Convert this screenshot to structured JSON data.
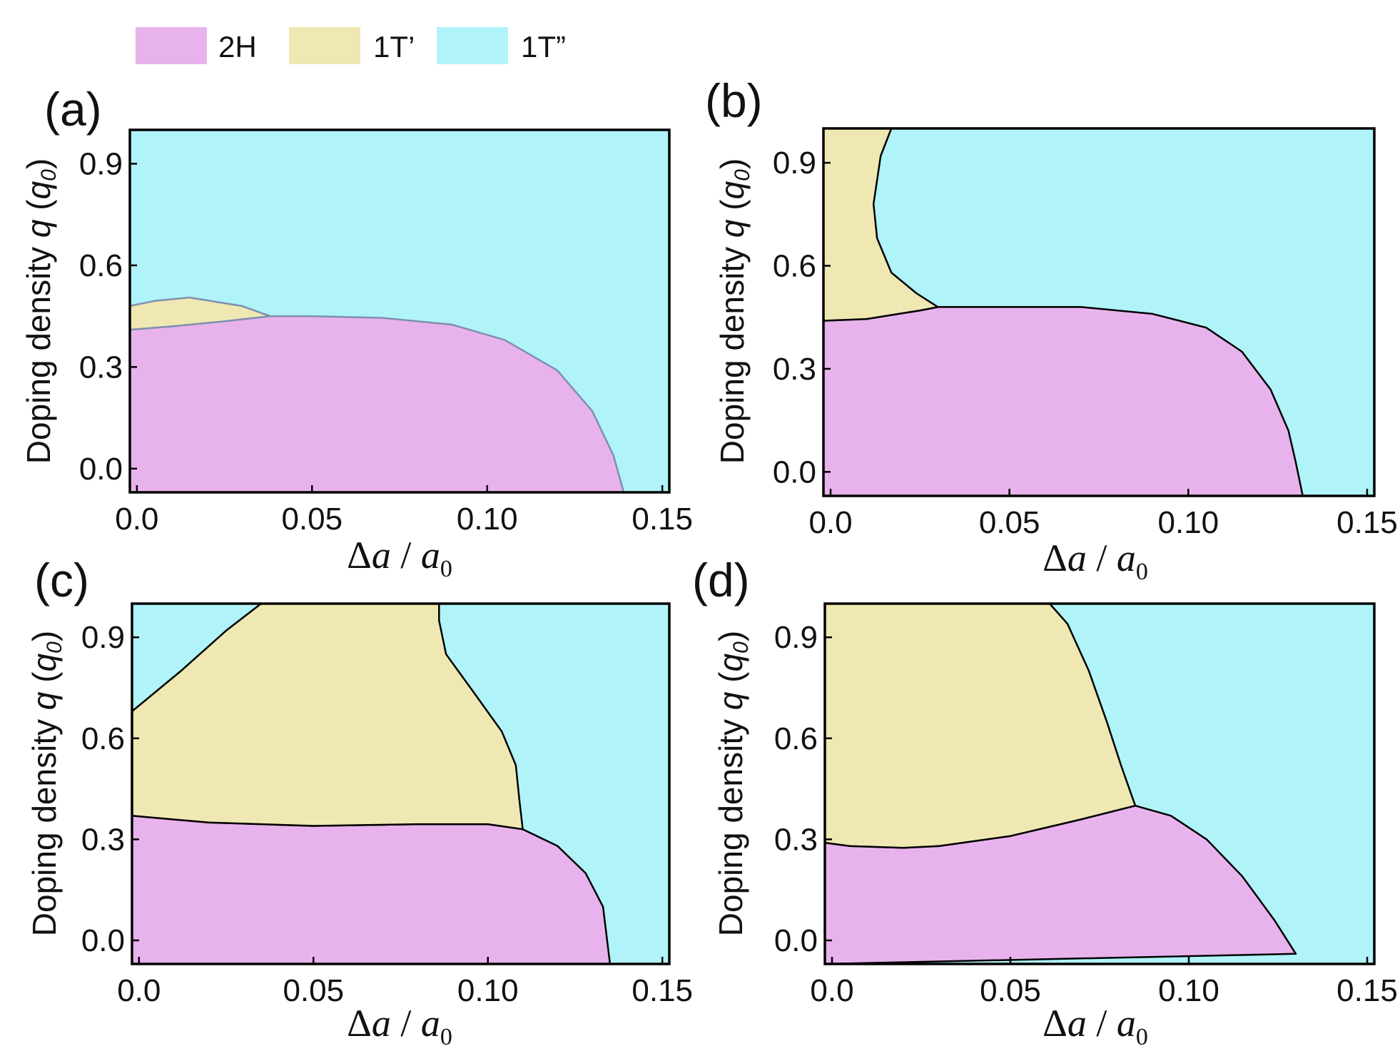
{
  "legend": [
    {
      "key": "2H",
      "label": "2H",
      "color": "#e8b3ec"
    },
    {
      "key": "1T1",
      "label": "1T’",
      "color": "#f0e8b3"
    },
    {
      "key": "1T2",
      "label": "1T”",
      "color": "#b0f3f8"
    }
  ],
  "axes": {
    "xlabel_delta": "Δ",
    "xlabel_a": "a",
    "xlabel_slash": " / ",
    "xlabel_a0": "a",
    "xlabel_sub": "0",
    "ylabel_prefix": "Doping density ",
    "ylabel_q": "q",
    "ylabel_open": " (",
    "ylabel_q0": "q",
    "ylabel_sub": "0",
    "ylabel_close": ")",
    "xlim": [
      -0.002,
      0.152
    ],
    "ylim": [
      -0.07,
      1.0
    ],
    "xticks": [
      "0.0",
      "0.05",
      "0.10",
      "0.15"
    ],
    "xtick_values": [
      0.0,
      0.05,
      0.1,
      0.15
    ],
    "yticks": [
      "0.0",
      "0.3",
      "0.6",
      "0.9"
    ],
    "ytick_values": [
      0.0,
      0.3,
      0.6,
      0.9
    ]
  },
  "chart_data": [
    {
      "type": "area",
      "panel": "(a)",
      "regions": [
        {
          "phase": "1T2",
          "polygon": [
            [
              -0.002,
              -0.07
            ],
            [
              0.152,
              -0.07
            ],
            [
              0.152,
              1.0
            ],
            [
              -0.002,
              1.0
            ]
          ]
        },
        {
          "phase": "2H",
          "polygon": [
            [
              -0.002,
              -0.07
            ],
            [
              -0.002,
              0.41
            ],
            [
              0.01,
              0.42
            ],
            [
              0.025,
              0.435
            ],
            [
              0.038,
              0.45
            ],
            [
              0.05,
              0.45
            ],
            [
              0.07,
              0.445
            ],
            [
              0.09,
              0.425
            ],
            [
              0.105,
              0.38
            ],
            [
              0.12,
              0.29
            ],
            [
              0.13,
              0.17
            ],
            [
              0.136,
              0.04
            ],
            [
              0.139,
              -0.07
            ]
          ]
        },
        {
          "phase": "1T1",
          "polygon": [
            [
              -0.002,
              0.41
            ],
            [
              0.01,
              0.42
            ],
            [
              0.025,
              0.435
            ],
            [
              0.038,
              0.45
            ],
            [
              0.03,
              0.48
            ],
            [
              0.015,
              0.505
            ],
            [
              0.005,
              0.495
            ],
            [
              -0.002,
              0.48
            ]
          ]
        }
      ],
      "boundary_color": "#7f8fb0"
    },
    {
      "type": "area",
      "panel": "(b)",
      "regions": [
        {
          "phase": "1T2",
          "polygon": [
            [
              -0.002,
              -0.07
            ],
            [
              0.152,
              -0.07
            ],
            [
              0.152,
              1.0
            ],
            [
              -0.002,
              1.0
            ]
          ]
        },
        {
          "phase": "2H",
          "polygon": [
            [
              -0.002,
              -0.07
            ],
            [
              -0.002,
              0.44
            ],
            [
              0.01,
              0.445
            ],
            [
              0.025,
              0.47
            ],
            [
              0.03,
              0.48
            ],
            [
              0.05,
              0.48
            ],
            [
              0.07,
              0.48
            ],
            [
              0.09,
              0.46
            ],
            [
              0.105,
              0.42
            ],
            [
              0.115,
              0.35
            ],
            [
              0.123,
              0.24
            ],
            [
              0.128,
              0.12
            ],
            [
              0.13,
              0.03
            ],
            [
              0.132,
              -0.07
            ]
          ]
        },
        {
          "phase": "1T1",
          "polygon": [
            [
              -0.002,
              1.0
            ],
            [
              0.017,
              1.0
            ],
            [
              0.014,
              0.92
            ],
            [
              0.012,
              0.78
            ],
            [
              0.013,
              0.68
            ],
            [
              0.017,
              0.58
            ],
            [
              0.024,
              0.52
            ],
            [
              0.03,
              0.48
            ],
            [
              0.025,
              0.47
            ],
            [
              0.01,
              0.445
            ],
            [
              -0.002,
              0.44
            ]
          ]
        }
      ],
      "boundary_color": "#000000"
    },
    {
      "type": "area",
      "panel": "(c)",
      "regions": [
        {
          "phase": "1T2",
          "polygon": [
            [
              -0.002,
              -0.07
            ],
            [
              0.152,
              -0.07
            ],
            [
              0.152,
              1.0
            ],
            [
              -0.002,
              1.0
            ]
          ]
        },
        {
          "phase": "2H",
          "polygon": [
            [
              -0.002,
              -0.07
            ],
            [
              -0.002,
              0.37
            ],
            [
              0.02,
              0.35
            ],
            [
              0.05,
              0.34
            ],
            [
              0.08,
              0.345
            ],
            [
              0.1,
              0.345
            ],
            [
              0.11,
              0.33
            ],
            [
              0.12,
              0.28
            ],
            [
              0.128,
              0.2
            ],
            [
              0.133,
              0.1
            ],
            [
              0.135,
              -0.07
            ]
          ]
        },
        {
          "phase": "1T1",
          "polygon": [
            [
              -0.002,
              0.37
            ],
            [
              0.02,
              0.35
            ],
            [
              0.05,
              0.34
            ],
            [
              0.08,
              0.345
            ],
            [
              0.1,
              0.345
            ],
            [
              0.11,
              0.33
            ],
            [
              0.109,
              0.42
            ],
            [
              0.108,
              0.52
            ],
            [
              0.104,
              0.62
            ],
            [
              0.095,
              0.75
            ],
            [
              0.088,
              0.85
            ],
            [
              0.086,
              0.95
            ],
            [
              0.086,
              1.0
            ],
            [
              0.035,
              1.0
            ],
            [
              0.025,
              0.92
            ],
            [
              0.012,
              0.8
            ],
            [
              -0.002,
              0.68
            ]
          ]
        }
      ],
      "boundary_color": "#000000"
    },
    {
      "type": "area",
      "panel": "(d)",
      "regions": [
        {
          "phase": "1T2",
          "polygon": [
            [
              -0.002,
              -0.07
            ],
            [
              0.152,
              -0.07
            ],
            [
              0.152,
              1.0
            ],
            [
              -0.002,
              1.0
            ]
          ]
        },
        {
          "phase": "2H",
          "polygon": [
            [
              -0.002,
              -0.07
            ],
            [
              -0.002,
              0.29
            ],
            [
              0.005,
              0.28
            ],
            [
              0.02,
              0.275
            ],
            [
              0.03,
              0.28
            ],
            [
              0.05,
              0.31
            ],
            [
              0.07,
              0.36
            ],
            [
              0.085,
              0.4
            ],
            [
              0.095,
              0.37
            ],
            [
              0.105,
              0.3
            ],
            [
              0.115,
              0.19
            ],
            [
              0.124,
              0.06
            ],
            [
              0.13,
              -0.04
            ]
          ]
        },
        {
          "phase": "1T1",
          "polygon": [
            [
              -0.002,
              0.29
            ],
            [
              0.005,
              0.28
            ],
            [
              0.02,
              0.275
            ],
            [
              0.03,
              0.28
            ],
            [
              0.05,
              0.31
            ],
            [
              0.07,
              0.36
            ],
            [
              0.085,
              0.4
            ],
            [
              0.081,
              0.52
            ],
            [
              0.077,
              0.65
            ],
            [
              0.072,
              0.8
            ],
            [
              0.066,
              0.94
            ],
            [
              0.061,
              1.0
            ],
            [
              -0.002,
              1.0
            ]
          ]
        }
      ],
      "boundary_color": "#000000"
    }
  ]
}
